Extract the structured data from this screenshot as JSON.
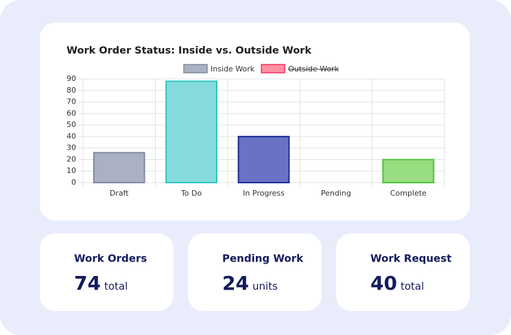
{
  "chart_data": {
    "type": "bar",
    "title": "Work Order Status: Inside vs. Outside Work",
    "categories": [
      "Draft",
      "To Do",
      "In Progress",
      "Pending",
      "Complete"
    ],
    "series": [
      {
        "name": "Inside Work",
        "color": "#a9b1c2",
        "border": "#7f8aa0",
        "colors": [
          "#a9b1c2",
          "#86dcdc",
          "#6972c4",
          "#a9b1c2",
          "#98dd80"
        ],
        "borders": [
          "#7f8aa0",
          "#2ec4c4",
          "#1c2a9a",
          "#7f8aa0",
          "#4cc43a"
        ],
        "values": [
          26,
          88,
          40,
          0,
          20
        ]
      },
      {
        "name": "Outside Work",
        "color": "#ff8fa3",
        "border": "#f0325a",
        "hidden": true
      }
    ],
    "ylim": [
      0,
      90
    ],
    "yticks": [
      0,
      10,
      20,
      30,
      40,
      50,
      60,
      70,
      80,
      90
    ],
    "grid": true
  },
  "stats": [
    {
      "label": "Work Orders",
      "value": "74",
      "unit": "total"
    },
    {
      "label": "Pending Work",
      "value": "24",
      "unit": "units"
    },
    {
      "label": "Work Request",
      "value": "40",
      "unit": "total"
    }
  ]
}
